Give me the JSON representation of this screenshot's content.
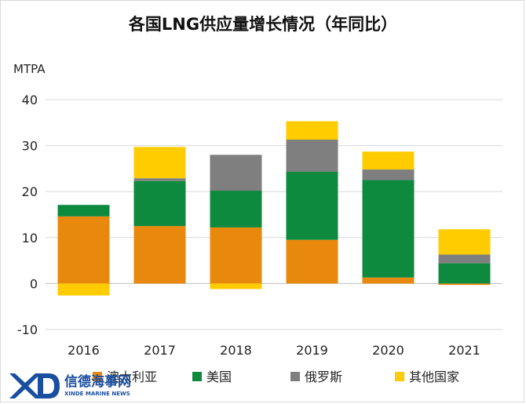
{
  "chart_data": {
    "type": "bar",
    "stacked": true,
    "title": "各国LNG供应量增长情况（年同比）",
    "ylabel": "MTPA",
    "ylim": [
      -10,
      40
    ],
    "yticks": [
      -10,
      0,
      10,
      20,
      30,
      40
    ],
    "grid": true,
    "legend_position": "bottom",
    "categories": [
      "2016",
      "2017",
      "2018",
      "2019",
      "2020",
      "2021"
    ],
    "series": [
      {
        "name": "澳大利亚",
        "color": "#e8880c",
        "values": [
          14.6,
          12.5,
          12.2,
          9.5,
          1.3,
          -0.3
        ]
      },
      {
        "name": "美国",
        "color": "#0d8a3e",
        "values": [
          2.5,
          9.8,
          8.0,
          14.8,
          21.2,
          4.4
        ]
      },
      {
        "name": "俄罗斯",
        "color": "#7f7f7f",
        "values": [
          0,
          0.6,
          7.8,
          7.0,
          2.3,
          1.9
        ]
      },
      {
        "name": "其他国家",
        "color": "#ffcc00",
        "values": [
          -2.6,
          6.8,
          -1.2,
          4.0,
          3.9,
          5.5
        ]
      }
    ]
  },
  "watermark": {
    "logo_letters": "XD",
    "cn_text": "信德海事网",
    "en_text": "XINDE MARINE NEWS"
  }
}
